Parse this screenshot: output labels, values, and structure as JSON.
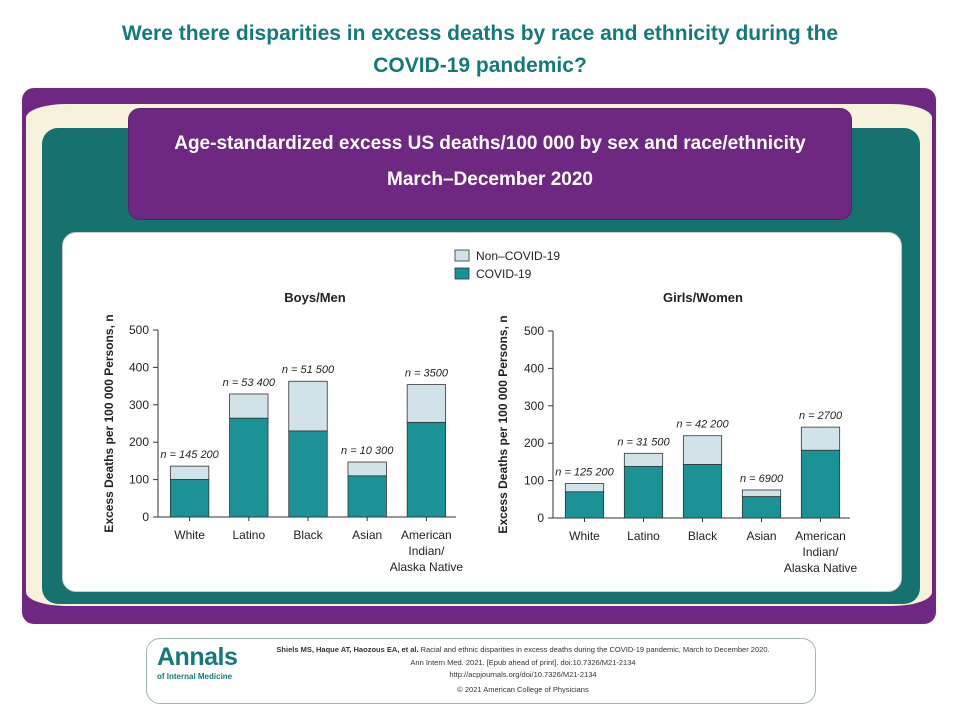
{
  "header": {
    "title_line1": "Were there disparities in excess deaths by race and ethnicity during the",
    "title_line2": "COVID-19 pandemic?"
  },
  "banner": {
    "line1": "Age-standardized excess US deaths/100 000 by sex and race/ethnicity",
    "line2": "March–December 2020"
  },
  "legend": {
    "items": [
      "Non–COVID-19",
      "COVID-19"
    ]
  },
  "colors": {
    "covid": "#1a9296",
    "non_covid": "#d1e3e8",
    "teal_frame": "#16726f",
    "purple": "#6e2882",
    "title_teal": "#17787a"
  },
  "chart_data": [
    {
      "type": "bar",
      "stacked": true,
      "title": "Boys/Men",
      "ylabel": "Excess Deaths per 100 000 Persons, n",
      "ylim": [
        0,
        500
      ],
      "yticks": [
        "0",
        "100",
        "200",
        "300",
        "400",
        "500"
      ],
      "categories": [
        "White",
        "Latino",
        "Black",
        "Asian",
        "American Indian/ Alaska Native"
      ],
      "category_lines": [
        [
          "White"
        ],
        [
          "Latino"
        ],
        [
          "Black"
        ],
        [
          "Asian"
        ],
        [
          "American",
          "Indian/",
          "Alaska Native"
        ]
      ],
      "series": [
        {
          "name": "COVID-19",
          "values": [
            100,
            264,
            230,
            110,
            253
          ]
        },
        {
          "name": "Non–COVID-19",
          "values": [
            36,
            65,
            133,
            37,
            101
          ]
        }
      ],
      "annotations": [
        "n = 145 200",
        "n = 53 400",
        "n = 51 500",
        "n = 10 300",
        "n = 3500"
      ]
    },
    {
      "type": "bar",
      "stacked": true,
      "title": "Girls/Women",
      "ylabel": "Excess Deaths per 100 000 Persons, n",
      "ylim": [
        0,
        500
      ],
      "yticks": [
        "0",
        "100",
        "200",
        "300",
        "400",
        "500"
      ],
      "categories": [
        "White",
        "Latino",
        "Black",
        "Asian",
        "American Indian/ Alaska Native"
      ],
      "category_lines": [
        [
          "White"
        ],
        [
          "Latino"
        ],
        [
          "Black"
        ],
        [
          "Asian"
        ],
        [
          "American",
          "Indian/",
          "Alaska Native"
        ]
      ],
      "series": [
        {
          "name": "COVID-19",
          "values": [
            70,
            138,
            143,
            57,
            181
          ]
        },
        {
          "name": "Non–COVID-19",
          "values": [
            22,
            35,
            77,
            18,
            62
          ]
        }
      ],
      "annotations": [
        "n = 125 200",
        "n = 31 500",
        "n = 42 200",
        "n = 6900",
        "n = 2700"
      ]
    }
  ],
  "footer": {
    "logo_main": "Annals",
    "logo_sub": "of Internal Medicine",
    "authors": "Shiels MS, Haque AT, Haozous EA, et al.",
    "article_title": "Racial and ethnic disparities in excess deaths during the COVID-19 pandemic, March to December 2020.",
    "journal": "Ann Intern Med. 2021. [Epub ahead of print]. doi:10.7326/M21-2134",
    "url": "http://acpjournals.org/doi/10.7326/M21-2134",
    "copyright": "© 2021 American College of Physicians"
  }
}
